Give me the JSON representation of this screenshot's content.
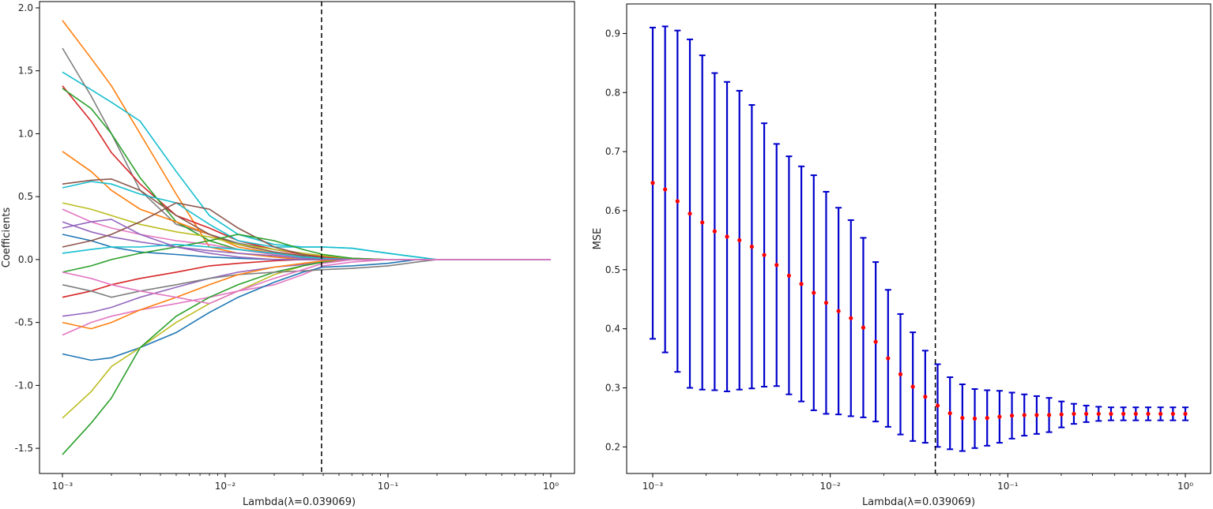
{
  "chart_data": [
    {
      "type": "line",
      "title": "",
      "xlabel": "Lambda(λ=0.039069)",
      "ylabel": "Coefficients",
      "xscale": "log",
      "xlim": [
        0.001,
        1
      ],
      "ylim": [
        -1.7,
        2.05
      ],
      "grid": false,
      "legend": "none",
      "x_ticks": [
        0.001,
        0.01,
        0.1,
        1
      ],
      "x_tick_labels": [
        "10⁻³",
        "10⁻²",
        "10⁻¹",
        "10⁰"
      ],
      "y_ticks": [
        -1.5,
        -1.0,
        -0.5,
        0.0,
        0.5,
        1.0,
        1.5,
        2.0
      ],
      "y_tick_labels": [
        "-1.5",
        "-1.0",
        "-0.5",
        "0.0",
        "0.5",
        "1.0",
        "1.5",
        "2.0"
      ],
      "vline_x": 0.039069,
      "x": [
        0.001,
        0.0015,
        0.002,
        0.003,
        0.005,
        0.008,
        0.012,
        0.02,
        0.03,
        0.04,
        0.06,
        0.1,
        0.15,
        0.2,
        0.3,
        0.5,
        1.0
      ],
      "series": [
        {
          "color": "#ff7f0e",
          "values": [
            1.9,
            1.6,
            1.38,
            1.0,
            0.52,
            0.1,
            0.05,
            0.02,
            0.0,
            0.0,
            0.0,
            0.0,
            0.0,
            0.0,
            0.0,
            0.0,
            0.0
          ]
        },
        {
          "color": "#17becf",
          "values": [
            1.49,
            1.35,
            1.25,
            1.1,
            0.7,
            0.35,
            0.2,
            0.12,
            0.1,
            0.1,
            0.09,
            0.05,
            0.02,
            0.0,
            0.0,
            0.0,
            0.0
          ]
        },
        {
          "color": "#7f7f7f",
          "values": [
            1.68,
            1.3,
            1.0,
            0.55,
            0.28,
            0.2,
            0.13,
            0.08,
            0.05,
            0.03,
            0.01,
            0.0,
            0.0,
            0.0,
            0.0,
            0.0,
            0.0
          ]
        },
        {
          "color": "#d62728",
          "values": [
            1.38,
            1.1,
            0.85,
            0.6,
            0.35,
            0.25,
            0.15,
            0.08,
            0.04,
            0.02,
            0.0,
            0.0,
            0.0,
            0.0,
            0.0,
            0.0,
            0.0
          ]
        },
        {
          "color": "#2ca02c",
          "values": [
            1.36,
            1.2,
            1.0,
            0.65,
            0.3,
            0.15,
            0.08,
            0.04,
            0.02,
            0.0,
            0.0,
            0.0,
            0.0,
            0.0,
            0.0,
            0.0,
            0.0
          ]
        },
        {
          "color": "#ff7f0e",
          "values": [
            0.86,
            0.7,
            0.55,
            0.4,
            0.3,
            0.2,
            0.1,
            0.05,
            0.02,
            0.0,
            0.0,
            0.0,
            0.0,
            0.0,
            0.0,
            0.0,
            0.0
          ]
        },
        {
          "color": "#8c564b",
          "values": [
            0.6,
            0.63,
            0.64,
            0.55,
            0.35,
            0.2,
            0.12,
            0.06,
            0.03,
            0.0,
            0.0,
            0.0,
            0.0,
            0.0,
            0.0,
            0.0,
            0.0
          ]
        },
        {
          "color": "#17becf",
          "values": [
            0.57,
            0.62,
            0.6,
            0.52,
            0.45,
            0.28,
            0.15,
            0.1,
            0.1,
            0.1,
            0.09,
            0.05,
            0.02,
            0.0,
            0.0,
            0.0,
            0.0
          ]
        },
        {
          "color": "#bcbd22",
          "values": [
            0.45,
            0.4,
            0.35,
            0.28,
            0.22,
            0.18,
            0.12,
            0.08,
            0.05,
            0.03,
            0.01,
            0.0,
            0.0,
            0.0,
            0.0,
            0.0,
            0.0
          ]
        },
        {
          "color": "#e377c2",
          "values": [
            0.4,
            0.3,
            0.25,
            0.2,
            0.15,
            0.12,
            0.08,
            0.04,
            0.02,
            0.0,
            0.0,
            0.0,
            0.0,
            0.0,
            0.0,
            0.0,
            0.0
          ]
        },
        {
          "color": "#9467bd",
          "values": [
            0.3,
            0.22,
            0.18,
            0.14,
            0.1,
            0.07,
            0.05,
            0.03,
            0.01,
            0.0,
            0.0,
            0.0,
            0.0,
            0.0,
            0.0,
            0.0,
            0.0
          ]
        },
        {
          "color": "#1f77b4",
          "values": [
            0.2,
            0.15,
            0.1,
            0.06,
            0.04,
            0.02,
            0.01,
            0.0,
            0.0,
            0.0,
            0.0,
            0.0,
            0.0,
            0.0,
            0.0,
            0.0,
            0.0
          ]
        },
        {
          "color": "#8c564b",
          "values": [
            0.1,
            0.15,
            0.2,
            0.3,
            0.45,
            0.4,
            0.25,
            0.1,
            0.04,
            0.01,
            0.0,
            0.0,
            0.0,
            0.0,
            0.0,
            0.0,
            0.0
          ]
        },
        {
          "color": "#2ca02c",
          "values": [
            -0.1,
            -0.05,
            0.0,
            0.05,
            0.1,
            0.15,
            0.2,
            0.15,
            0.08,
            0.04,
            0.01,
            0.0,
            0.0,
            0.0,
            0.0,
            0.0,
            0.0
          ]
        },
        {
          "color": "#d62728",
          "values": [
            -0.3,
            -0.25,
            -0.2,
            -0.15,
            -0.1,
            -0.05,
            -0.03,
            -0.01,
            0.0,
            0.0,
            0.0,
            0.0,
            0.0,
            0.0,
            0.0,
            0.0,
            0.0
          ]
        },
        {
          "color": "#9467bd",
          "values": [
            -0.45,
            -0.42,
            -0.38,
            -0.3,
            -0.22,
            -0.15,
            -0.1,
            -0.06,
            -0.04,
            -0.02,
            0.0,
            0.0,
            0.0,
            0.0,
            0.0,
            0.0,
            0.0
          ]
        },
        {
          "color": "#e377c2",
          "values": [
            -0.6,
            -0.5,
            -0.45,
            -0.4,
            -0.35,
            -0.3,
            -0.25,
            -0.2,
            -0.12,
            -0.05,
            -0.02,
            0.0,
            0.0,
            0.0,
            0.0,
            0.0,
            0.0
          ]
        },
        {
          "color": "#1f77b4",
          "values": [
            -0.75,
            -0.8,
            -0.78,
            -0.7,
            -0.58,
            -0.42,
            -0.3,
            -0.18,
            -0.1,
            -0.06,
            -0.05,
            -0.03,
            0.0,
            0.0,
            0.0,
            0.0,
            0.0
          ]
        },
        {
          "color": "#bcbd22",
          "values": [
            -1.26,
            -1.05,
            -0.85,
            -0.7,
            -0.5,
            -0.35,
            -0.25,
            -0.12,
            -0.05,
            -0.02,
            0.0,
            0.0,
            0.0,
            0.0,
            0.0,
            0.0,
            0.0
          ]
        },
        {
          "color": "#2ca02c",
          "values": [
            -1.55,
            -1.3,
            -1.1,
            -0.7,
            -0.45,
            -0.3,
            -0.2,
            -0.1,
            -0.05,
            -0.02,
            0.0,
            0.0,
            0.0,
            0.0,
            0.0,
            0.0,
            0.0
          ]
        },
        {
          "color": "#7f7f7f",
          "values": [
            -0.2,
            -0.25,
            -0.3,
            -0.25,
            -0.2,
            -0.15,
            -0.12,
            -0.1,
            -0.09,
            -0.08,
            -0.07,
            -0.05,
            -0.02,
            0.0,
            0.0,
            0.0,
            0.0
          ]
        },
        {
          "color": "#ff7f0e",
          "values": [
            -0.5,
            -0.55,
            -0.5,
            -0.4,
            -0.3,
            -0.2,
            -0.12,
            -0.06,
            -0.03,
            -0.01,
            0.0,
            0.0,
            0.0,
            0.0,
            0.0,
            0.0,
            0.0
          ]
        },
        {
          "color": "#17becf",
          "values": [
            0.05,
            0.08,
            0.1,
            0.1,
            0.12,
            0.1,
            0.08,
            0.05,
            0.02,
            0.01,
            0.0,
            0.0,
            0.0,
            0.0,
            0.0,
            0.0,
            0.0
          ]
        },
        {
          "color": "#9467bd",
          "values": [
            0.25,
            0.3,
            0.32,
            0.2,
            0.1,
            0.05,
            0.02,
            0.0,
            0.0,
            0.0,
            0.0,
            0.0,
            0.0,
            0.0,
            0.0,
            0.0,
            0.0
          ]
        },
        {
          "color": "#e377c2",
          "values": [
            -0.1,
            -0.15,
            -0.2,
            -0.25,
            -0.3,
            -0.35,
            -0.25,
            -0.15,
            -0.08,
            -0.03,
            0.0,
            0.0,
            0.0,
            0.0,
            0.0,
            0.0,
            0.0
          ]
        }
      ]
    },
    {
      "type": "scatter",
      "title": "",
      "xlabel": "Lambda(λ=0.039069)",
      "ylabel": "MSE",
      "xscale": "log",
      "xlim": [
        0.001,
        1
      ],
      "ylim": [
        0.155,
        0.95
      ],
      "grid": false,
      "legend": "none",
      "x_ticks": [
        0.001,
        0.01,
        0.1,
        1
      ],
      "x_tick_labels": [
        "10⁻³",
        "10⁻²",
        "10⁻¹",
        "10⁰"
      ],
      "y_ticks": [
        0.2,
        0.3,
        0.4,
        0.5,
        0.6,
        0.7,
        0.8,
        0.9
      ],
      "y_tick_labels": [
        "0.2",
        "0.3",
        "0.4",
        "0.5",
        "0.6",
        "0.7",
        "0.8",
        "0.9"
      ],
      "vline_x": 0.039069,
      "marker_color": "#ff0000",
      "errorbar_color": "#0000cc",
      "mse": [
        0.647,
        0.636,
        0.616,
        0.595,
        0.58,
        0.565,
        0.556,
        0.55,
        0.539,
        0.525,
        0.508,
        0.49,
        0.476,
        0.461,
        0.444,
        0.43,
        0.418,
        0.402,
        0.378,
        0.35,
        0.323,
        0.302,
        0.285,
        0.27,
        0.257,
        0.249,
        0.248,
        0.249,
        0.251,
        0.253,
        0.254,
        0.254,
        0.254,
        0.255,
        0.256,
        0.256,
        0.256,
        0.256,
        0.256,
        0.256,
        0.256,
        0.256,
        0.256,
        0.256
      ],
      "err_upper": [
        0.91,
        0.912,
        0.905,
        0.89,
        0.863,
        0.833,
        0.818,
        0.803,
        0.779,
        0.748,
        0.713,
        0.692,
        0.675,
        0.66,
        0.632,
        0.605,
        0.584,
        0.554,
        0.513,
        0.466,
        0.425,
        0.394,
        0.363,
        0.34,
        0.318,
        0.306,
        0.298,
        0.296,
        0.295,
        0.292,
        0.289,
        0.286,
        0.283,
        0.277,
        0.273,
        0.27,
        0.268,
        0.267,
        0.267,
        0.267,
        0.267,
        0.267,
        0.267,
        0.267
      ],
      "err_lower": [
        0.383,
        0.36,
        0.327,
        0.3,
        0.297,
        0.296,
        0.294,
        0.297,
        0.299,
        0.302,
        0.303,
        0.289,
        0.277,
        0.262,
        0.256,
        0.255,
        0.252,
        0.25,
        0.243,
        0.234,
        0.221,
        0.21,
        0.207,
        0.2,
        0.196,
        0.193,
        0.198,
        0.202,
        0.207,
        0.214,
        0.219,
        0.222,
        0.225,
        0.233,
        0.239,
        0.242,
        0.244,
        0.245,
        0.245,
        0.245,
        0.245,
        0.245,
        0.245,
        0.245
      ]
    }
  ]
}
